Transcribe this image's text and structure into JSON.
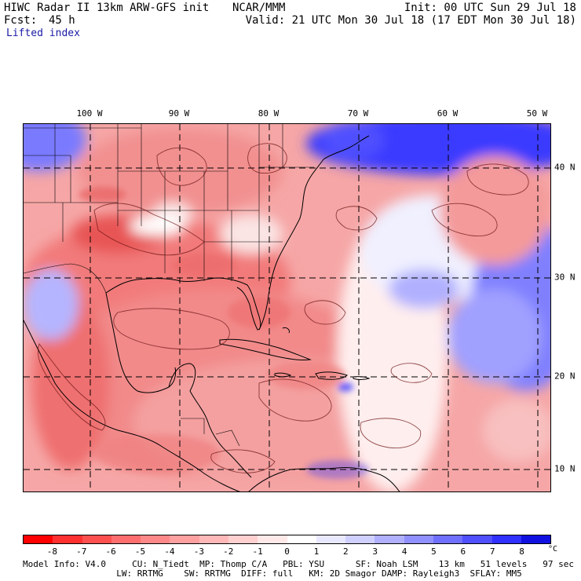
{
  "header": {
    "title": "HIWC Radar II 13km ARW-GFS init",
    "org": "NCAR/MMM",
    "init": "Init: 00 UTC Sun 29 Jul 18",
    "fcst_label": "Fcst:",
    "fcst_value": "45 h",
    "valid": "Valid: 21 UTC Mon 30 Jul 18 (17 EDT Mon 30 Jul 18)",
    "field": "Lifted index"
  },
  "map": {
    "longitude_labels": [
      "100 W",
      "90 W",
      "80 W",
      "70 W",
      "60 W",
      "50 W"
    ],
    "latitude_labels": [
      "40 N",
      "30 N",
      "20 N",
      "10 N"
    ],
    "colors": {
      "unstable": "#f05050",
      "neutral": "#ffffff",
      "stable": "#3a3aff"
    }
  },
  "colorbar": {
    "ticks": [
      "-8",
      "-7",
      "-6",
      "-5",
      "-4",
      "-3",
      "-2",
      "-1",
      "0",
      "1",
      "2",
      "3",
      "4",
      "5",
      "6",
      "7",
      "8"
    ],
    "unit": "°C",
    "colors": [
      "#ff0000",
      "#ff3030",
      "#ff5050",
      "#ff6e6e",
      "#ff8888",
      "#ffa0a0",
      "#ffb8b8",
      "#ffd0d0",
      "#ffe8e8",
      "#ffffff",
      "#e8e8ff",
      "#d0d0ff",
      "#b0b0ff",
      "#9090ff",
      "#7070ff",
      "#5050ff",
      "#3030ff",
      "#1010e0"
    ]
  },
  "footer": {
    "line1": "Model Info: V4.0     CU: N_Tiedt  MP: Thomp C/A   PBL: YSU      SF: Noah LSM    13 km   51 levels   97 sec",
    "line2": "                  LW: RRTMG    SW: RRTMG  DIFF: full   KM: 2D Smagor DAMP: Rayleigh3  SFLAY: MM5"
  }
}
